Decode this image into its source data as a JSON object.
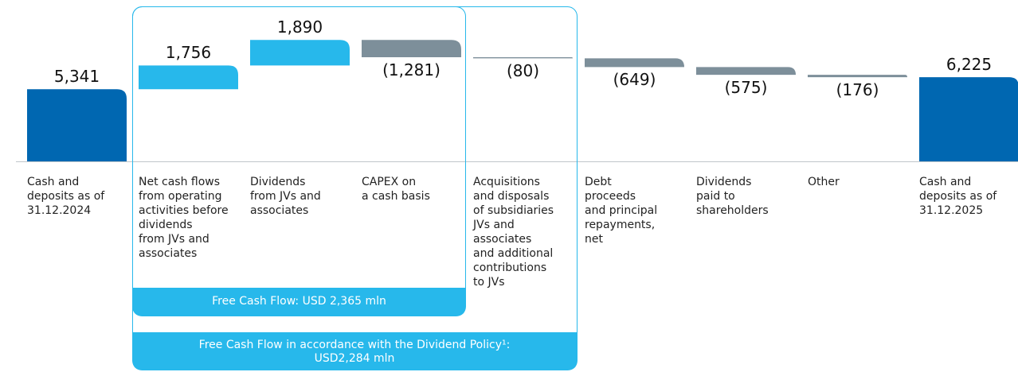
{
  "chart_data": {
    "type": "waterfall",
    "categories": [
      "Cash and\ndeposits as of\n31.12.2024",
      "Net cash flows\nfrom operating\nactivities before\ndividends\nfrom JVs and\nassociates",
      "Dividends\nfrom JVs and\nassociates",
      "CAPEX on\na cash basis",
      "Acquisitions\nand disposals\nof subsidiaries\nJVs and\nassociates\nand additional\ncontributions\nto JVs",
      "Debt\nproceeds\nand principal\nrepayments,\nnet",
      "Dividends\npaid to\nshareholders",
      "Other",
      "Cash and\ndeposits as of\n31.12.2025"
    ],
    "values": [
      5341,
      1756,
      1890,
      -1281,
      -80,
      -649,
      -575,
      -176,
      6225
    ],
    "value_labels": [
      "5,341",
      "1,756",
      "1,890",
      "(1,281)",
      "(80)",
      "(649)",
      "(575)",
      "(176)",
      "6,225"
    ],
    "measure": [
      "total",
      "relative",
      "relative",
      "relative",
      "relative",
      "relative",
      "relative",
      "relative",
      "total"
    ],
    "colors": {
      "total": "#0067b1",
      "increase": "#27b8eb",
      "decrease": "#7d8f9a"
    },
    "annotations": [
      "Free Cash Flow: USD 2,365 mln",
      "Free Cash Flow in accordance with the Dividend Policy¹: USD2,284 mln"
    ]
  }
}
